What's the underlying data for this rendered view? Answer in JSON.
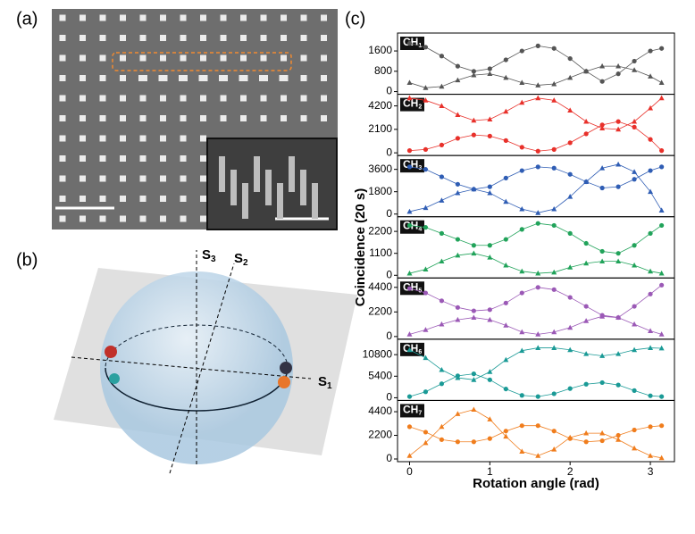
{
  "panels": {
    "a": {
      "label": "(a)"
    },
    "b": {
      "label": "(b)",
      "axes": [
        {
          "text": "S",
          "sub": "1"
        },
        {
          "text": "S",
          "sub": "2"
        },
        {
          "text": "S",
          "sub": "3"
        }
      ]
    },
    "c": {
      "label": "(c)"
    }
  },
  "chart_data": {
    "type": "line",
    "x": [
      0,
      0.2,
      0.4,
      0.6,
      0.8,
      1.0,
      1.2,
      1.4,
      1.6,
      1.8,
      2.0,
      2.2,
      2.4,
      2.6,
      2.8,
      3.0,
      3.14
    ],
    "xlim": [
      -0.15,
      3.3
    ],
    "xticks": [
      0,
      1,
      2,
      3
    ],
    "xlabel": "Rotation angle (rad)",
    "ylabel": "Coincidence (20 s)",
    "subplots": [
      {
        "channel": {
          "text": "CH",
          "sub": "1"
        },
        "ylim": [
          0,
          2200
        ],
        "yticks": [
          0,
          800,
          1600
        ],
        "color": "#555555",
        "series": [
          {
            "marker": "circle",
            "values": [
              1900,
              1750,
              1400,
              1000,
              800,
              900,
              1250,
              1600,
              1800,
              1700,
              1300,
              800,
              400,
              700,
              1200,
              1600,
              1700
            ]
          },
          {
            "marker": "triangle",
            "values": [
              350,
              150,
              200,
              450,
              650,
              700,
              550,
              350,
              250,
              300,
              550,
              800,
              1000,
              1000,
              850,
              600,
              350
            ]
          }
        ]
      },
      {
        "channel": {
          "text": "CH",
          "sub": "2"
        },
        "ylim": [
          0,
          5000
        ],
        "yticks": [
          0,
          2100,
          4200
        ],
        "color": "#e8302a",
        "series": [
          {
            "marker": "circle",
            "values": [
              200,
              300,
              700,
              1300,
              1600,
              1500,
              1100,
              500,
              150,
              300,
              900,
              1700,
              2500,
              2800,
              2300,
              1200,
              200
            ]
          },
          {
            "marker": "triangle",
            "values": [
              4900,
              4700,
              4200,
              3400,
              2900,
              3000,
              3700,
              4500,
              4900,
              4700,
              3800,
              2800,
              2200,
              2100,
              2800,
              4000,
              4900
            ]
          }
        ]
      },
      {
        "channel": {
          "text": "CH",
          "sub": "3"
        },
        "ylim": [
          0,
          4500
        ],
        "yticks": [
          0,
          1800,
          3600
        ],
        "color": "#2f5db4",
        "series": [
          {
            "marker": "circle",
            "values": [
              3800,
              3600,
              3000,
              2400,
              2000,
              2200,
              2900,
              3500,
              3800,
              3700,
              3200,
              2600,
              2100,
              2200,
              2800,
              3500,
              3800
            ]
          },
          {
            "marker": "triangle",
            "values": [
              200,
              500,
              1100,
              1700,
              2000,
              1700,
              1000,
              400,
              100,
              400,
              1400,
              2600,
              3700,
              4000,
              3400,
              1800,
              300
            ]
          }
        ]
      },
      {
        "channel": {
          "text": "CH",
          "sub": "4"
        },
        "ylim": [
          0,
          2800
        ],
        "yticks": [
          0,
          1100,
          2200
        ],
        "color": "#21a35a",
        "series": [
          {
            "marker": "circle",
            "values": [
              2500,
              2400,
              2100,
              1800,
              1500,
              1500,
              1800,
              2300,
              2600,
              2500,
              2100,
              1600,
              1200,
              1100,
              1500,
              2100,
              2500
            ]
          },
          {
            "marker": "triangle",
            "values": [
              100,
              300,
              700,
              1000,
              1100,
              900,
              500,
              200,
              100,
              150,
              400,
              600,
              700,
              700,
              500,
              200,
              100
            ]
          }
        ]
      },
      {
        "channel": {
          "text": "CH",
          "sub": "5"
        },
        "ylim": [
          0,
          5000
        ],
        "yticks": [
          0,
          2200,
          4400
        ],
        "color": "#9b59b6",
        "series": [
          {
            "marker": "circle",
            "values": [
              4300,
              3900,
              3200,
              2600,
              2300,
              2400,
              3000,
              3900,
              4400,
              4200,
              3500,
              2700,
              1900,
              1700,
              2700,
              3800,
              4600
            ]
          },
          {
            "marker": "triangle",
            "values": [
              200,
              600,
              1100,
              1500,
              1700,
              1500,
              1000,
              400,
              200,
              400,
              800,
              1400,
              1800,
              1700,
              1100,
              500,
              200
            ]
          }
        ]
      },
      {
        "channel": {
          "text": "CH",
          "sub": "6"
        },
        "ylim": [
          0,
          14000
        ],
        "yticks": [
          0,
          5400,
          10800
        ],
        "color": "#1a9a96",
        "series": [
          {
            "marker": "circle",
            "values": [
              300,
              1500,
              3500,
              5500,
              6000,
              4500,
              2200,
              600,
              300,
              1000,
              2300,
              3400,
              3800,
              3200,
              1800,
              500,
              300
            ]
          },
          {
            "marker": "triangle",
            "values": [
              12000,
              10000,
              7000,
              5000,
              4500,
              6500,
              9500,
              11800,
              12500,
              12500,
              12000,
              11000,
              10500,
              11000,
              12000,
              12500,
              12400
            ]
          }
        ]
      },
      {
        "channel": {
          "text": "CH",
          "sub": "7"
        },
        "ylim": [
          0,
          5200
        ],
        "yticks": [
          0,
          2200,
          4400
        ],
        "color": "#f07d1d",
        "series": [
          {
            "marker": "circle",
            "values": [
              3000,
              2500,
              1800,
              1600,
              1600,
              1900,
              2600,
              3100,
              3100,
              2600,
              1900,
              1600,
              1700,
              2200,
              2700,
              3000,
              3100
            ]
          },
          {
            "marker": "triangle",
            "values": [
              300,
              1500,
              3000,
              4200,
              4600,
              3700,
              2100,
              700,
              300,
              900,
              2000,
              2400,
              2400,
              1800,
              1000,
              300,
              100
            ]
          }
        ]
      }
    ]
  }
}
